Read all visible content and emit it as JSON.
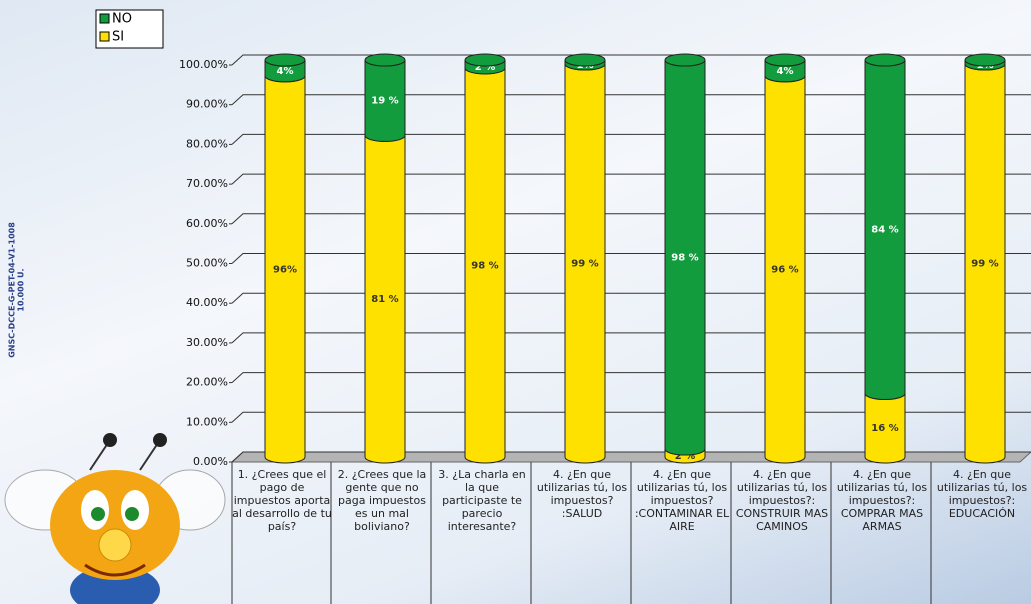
{
  "chart_data": {
    "type": "stacked-cylinder",
    "annotations": [
      "GNSC-DCCE-G-PET-04-V1-1008",
      "10.000 U."
    ],
    "categories": [
      "1. ¿Crees que el pago de impuestos aporta al desarrollo de tu país?",
      "2. ¿Crees que la gente que no paga impuestos es un mal boliviano?",
      "3. ¿La charla en la que participaste te parecio interesante?",
      "4. ¿En que utilizarias tú, los impuestos? :SALUD",
      "4. ¿En que utilizarias tú, los impuestos? :CONTAMINAR EL AIRE",
      "4. ¿En que utilizarias tú, los impuestos?: CONSTRUIR MAS CAMINOS",
      "4. ¿En que utilizarias tú, los impuestos?: COMPRAR MAS ARMAS",
      "4. ¿En que utilizarias tú, los impuestos?: EDUCACIÓN"
    ],
    "series": [
      {
        "name": "SI",
        "color": "#ffe100",
        "values": [
          96,
          81,
          98,
          99,
          2,
          96,
          16,
          99
        ],
        "value_labels": [
          "96%",
          "81 %",
          "98 %",
          "99 %",
          "2 %",
          "96 %",
          "16 %",
          "99 %"
        ]
      },
      {
        "name": "NO",
        "color": "#139c3e",
        "values": [
          4,
          19,
          2,
          1,
          98,
          4,
          84,
          1
        ],
        "value_labels": [
          "4%",
          "19 %",
          "2 %",
          "1%",
          "98 %",
          "4%",
          "84 %",
          "1%"
        ]
      }
    ],
    "ylim": [
      0,
      100
    ],
    "yticks": [
      {
        "value": 0,
        "label": "0.00%"
      },
      {
        "value": 10,
        "label": "10.00%"
      },
      {
        "value": 20,
        "label": "20.00%"
      },
      {
        "value": 30,
        "label": "30.00%"
      },
      {
        "value": 40,
        "label": "40.00%"
      },
      {
        "value": 50,
        "label": "50.00%"
      },
      {
        "value": 60,
        "label": "60.00%"
      },
      {
        "value": 70,
        "label": "70.00%"
      },
      {
        "value": 80,
        "label": "80.00%"
      },
      {
        "value": 90,
        "label": "90.00%"
      },
      {
        "value": 100,
        "label": "100.00%"
      }
    ],
    "grid": true,
    "legend": "top-left"
  }
}
